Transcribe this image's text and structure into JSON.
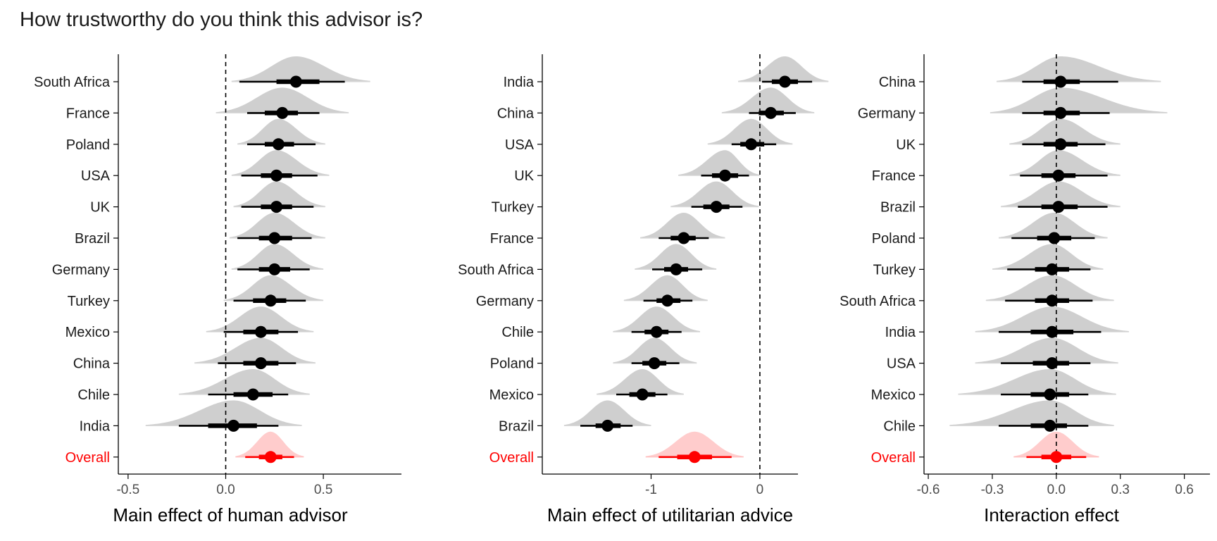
{
  "title": "How trustworthy do you think this advisor is?",
  "colors": {
    "normal_density": "#cfcfcf",
    "normal_point": "#000000",
    "overall_density": "#ffcccc",
    "overall_point": "#ff0000",
    "overall_label": "#ff0000",
    "interval_light": "#d9d9d9"
  },
  "chart_data": [
    {
      "type": "scatter",
      "xlabel": "Main effect of human advisor",
      "xlim": [
        -0.55,
        0.9
      ],
      "xticks": [
        -0.5,
        0.0,
        0.5
      ],
      "xtick_labels": [
        "-0.5",
        "0.0",
        "0.5"
      ],
      "reference_line": 0,
      "categories": [
        "South Africa",
        "France",
        "Poland",
        "USA",
        "UK",
        "Brazil",
        "Germany",
        "Turkey",
        "Mexico",
        "China",
        "Chile",
        "India",
        "Overall"
      ],
      "estimates": [
        0.36,
        0.29,
        0.27,
        0.26,
        0.26,
        0.25,
        0.25,
        0.23,
        0.18,
        0.18,
        0.14,
        0.04,
        0.23
      ],
      "ci66": [
        [
          0.26,
          0.48
        ],
        [
          0.2,
          0.37
        ],
        [
          0.2,
          0.35
        ],
        [
          0.18,
          0.34
        ],
        [
          0.18,
          0.34
        ],
        [
          0.17,
          0.34
        ],
        [
          0.17,
          0.33
        ],
        [
          0.14,
          0.31
        ],
        [
          0.09,
          0.27
        ],
        [
          0.09,
          0.27
        ],
        [
          0.04,
          0.24
        ],
        [
          -0.09,
          0.16
        ],
        [
          0.17,
          0.29
        ]
      ],
      "ci95": [
        [
          0.07,
          0.61
        ],
        [
          0.11,
          0.48
        ],
        [
          0.11,
          0.46
        ],
        [
          0.08,
          0.47
        ],
        [
          0.08,
          0.45
        ],
        [
          0.06,
          0.44
        ],
        [
          0.06,
          0.43
        ],
        [
          0.04,
          0.41
        ],
        [
          -0.01,
          0.37
        ],
        [
          -0.04,
          0.36
        ],
        [
          -0.09,
          0.32
        ],
        [
          -0.24,
          0.27
        ],
        [
          0.1,
          0.35
        ]
      ],
      "ci99": [
        [
          0.03,
          0.74
        ],
        [
          -0.05,
          0.63
        ],
        [
          0.06,
          0.51
        ],
        [
          0.03,
          0.53
        ],
        [
          0.04,
          0.51
        ],
        [
          0.02,
          0.51
        ],
        [
          0.03,
          0.5
        ],
        [
          -0.01,
          0.5
        ],
        [
          -0.1,
          0.45
        ],
        [
          -0.16,
          0.46
        ],
        [
          -0.24,
          0.43
        ],
        [
          -0.41,
          0.39
        ],
        [
          0.05,
          0.4
        ]
      ]
    },
    {
      "type": "scatter",
      "xlabel": "Main effect of utilitarian advice",
      "xlim": [
        -2.0,
        0.35
      ],
      "xticks": [
        -1,
        0
      ],
      "xtick_labels": [
        "-1",
        "0"
      ],
      "reference_line": 0,
      "categories": [
        "India",
        "China",
        "USA",
        "UK",
        "Turkey",
        "France",
        "South Africa",
        "Germany",
        "Chile",
        "Poland",
        "Mexico",
        "Brazil",
        "Overall"
      ],
      "estimates": [
        0.23,
        0.1,
        -0.08,
        -0.32,
        -0.4,
        -0.7,
        -0.77,
        -0.85,
        -0.95,
        -0.97,
        -1.08,
        -1.4,
        -0.6
      ],
      "ci66": [
        [
          0.11,
          0.35
        ],
        [
          -0.01,
          0.22
        ],
        [
          -0.18,
          0.04
        ],
        [
          -0.44,
          -0.2
        ],
        [
          -0.52,
          -0.28
        ],
        [
          -0.82,
          -0.59
        ],
        [
          -0.88,
          -0.66
        ],
        [
          -0.95,
          -0.73
        ],
        [
          -1.06,
          -0.84
        ],
        [
          -1.08,
          -0.86
        ],
        [
          -1.2,
          -0.96
        ],
        [
          -1.51,
          -1.28
        ],
        [
          -0.76,
          -0.44
        ]
      ],
      "ci95": [
        [
          0.02,
          0.48
        ],
        [
          -0.1,
          0.33
        ],
        [
          -0.26,
          0.15
        ],
        [
          -0.54,
          -0.1
        ],
        [
          -0.63,
          -0.16
        ],
        [
          -0.93,
          -0.47
        ],
        [
          -0.99,
          -0.53
        ],
        [
          -1.07,
          -0.62
        ],
        [
          -1.18,
          -0.72
        ],
        [
          -1.18,
          -0.74
        ],
        [
          -1.32,
          -0.85
        ],
        [
          -1.65,
          -1.17
        ],
        [
          -0.93,
          -0.26
        ]
      ],
      "ci99": [
        [
          -0.2,
          0.63
        ],
        [
          -0.35,
          0.5
        ],
        [
          -0.48,
          0.3
        ],
        [
          -0.75,
          0.0
        ],
        [
          -0.82,
          -0.01
        ],
        [
          -1.1,
          -0.32
        ],
        [
          -1.15,
          -0.4
        ],
        [
          -1.25,
          -0.48
        ],
        [
          -1.35,
          -0.55
        ],
        [
          -1.35,
          -0.58
        ],
        [
          -1.5,
          -0.7
        ],
        [
          -1.8,
          -1.0
        ],
        [
          -1.05,
          -0.15
        ]
      ]
    },
    {
      "type": "scatter",
      "xlabel": "Interaction effect",
      "xlim": [
        -0.62,
        0.72
      ],
      "xticks": [
        -0.6,
        -0.3,
        0.0,
        0.3,
        0.6
      ],
      "xtick_labels": [
        "-0.6",
        "-0.3",
        "0.0",
        "0.3",
        "0.6"
      ],
      "reference_line": 0,
      "categories": [
        "China",
        "Germany",
        "UK",
        "France",
        "Brazil",
        "Poland",
        "Turkey",
        "South Africa",
        "India",
        "USA",
        "Mexico",
        "Chile",
        "Overall"
      ],
      "estimates": [
        0.02,
        0.02,
        0.02,
        0.01,
        0.01,
        -0.01,
        -0.02,
        -0.02,
        -0.02,
        -0.02,
        -0.03,
        -0.03,
        0.0
      ],
      "ci66": [
        [
          -0.06,
          0.11
        ],
        [
          -0.06,
          0.11
        ],
        [
          -0.06,
          0.1
        ],
        [
          -0.07,
          0.09
        ],
        [
          -0.07,
          0.1
        ],
        [
          -0.09,
          0.07
        ],
        [
          -0.1,
          0.06
        ],
        [
          -0.1,
          0.06
        ],
        [
          -0.12,
          0.08
        ],
        [
          -0.11,
          0.06
        ],
        [
          -0.12,
          0.06
        ],
        [
          -0.12,
          0.05
        ],
        [
          -0.07,
          0.07
        ]
      ],
      "ci95": [
        [
          -0.16,
          0.29
        ],
        [
          -0.16,
          0.25
        ],
        [
          -0.16,
          0.23
        ],
        [
          -0.17,
          0.24
        ],
        [
          -0.18,
          0.24
        ],
        [
          -0.21,
          0.18
        ],
        [
          -0.23,
          0.16
        ],
        [
          -0.24,
          0.17
        ],
        [
          -0.27,
          0.21
        ],
        [
          -0.26,
          0.16
        ],
        [
          -0.26,
          0.15
        ],
        [
          -0.27,
          0.15
        ],
        [
          -0.14,
          0.14
        ]
      ],
      "ci99": [
        [
          -0.28,
          0.49
        ],
        [
          -0.31,
          0.52
        ],
        [
          -0.22,
          0.3
        ],
        [
          -0.22,
          0.3
        ],
        [
          -0.26,
          0.3
        ],
        [
          -0.27,
          0.24
        ],
        [
          -0.3,
          0.22
        ],
        [
          -0.33,
          0.27
        ],
        [
          -0.38,
          0.34
        ],
        [
          -0.38,
          0.29
        ],
        [
          -0.46,
          0.28
        ],
        [
          -0.5,
          0.27
        ],
        [
          -0.2,
          0.2
        ]
      ]
    }
  ]
}
